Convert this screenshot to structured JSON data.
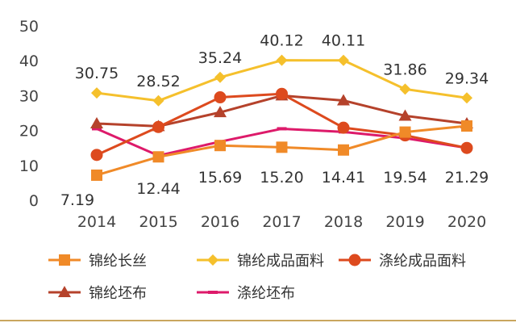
{
  "chart_data": {
    "type": "line",
    "title": "",
    "xlabel": "",
    "ylabel": "",
    "categories": [
      "2014",
      "2015",
      "2016",
      "2017",
      "2018",
      "2019",
      "2020"
    ],
    "ylim": [
      0,
      50
    ],
    "yticks": [
      "0",
      "10",
      "20",
      "30",
      "40",
      "50"
    ],
    "grid": false,
    "legend_position": "bottom",
    "series": [
      {
        "name": "锦纶长丝",
        "color": "#f08a28",
        "marker": "square",
        "values": [
          7.19,
          12.44,
          15.69,
          15.2,
          14.41,
          19.54,
          21.29
        ],
        "labels": [
          "7.19",
          "12.44",
          "15.69",
          "15.20",
          "14.41",
          "19.54",
          "21.29"
        ]
      },
      {
        "name": "锦纶成品面料",
        "color": "#f5c02c",
        "marker": "diamond",
        "values": [
          30.75,
          28.52,
          35.24,
          40.12,
          40.11,
          31.86,
          29.34
        ],
        "labels": [
          "30.75",
          "28.52",
          "35.24",
          "40.12",
          "40.11",
          "31.86",
          "29.34"
        ]
      },
      {
        "name": "涤纶成品面料",
        "color": "#dd4a1e",
        "marker": "circle",
        "values": [
          13.0,
          21.0,
          29.5,
          30.5,
          20.8,
          18.6,
          15.0
        ]
      },
      {
        "name": "锦纶坯布",
        "color": "#b5422b",
        "marker": "triangle",
        "values": [
          22.0,
          21.2,
          25.2,
          30.0,
          28.6,
          24.2,
          22.0
        ]
      },
      {
        "name": "涤纶坯布",
        "color": "#dd1a6a",
        "marker": "dash",
        "values": [
          20.5,
          12.8,
          16.8,
          20.5,
          19.6,
          17.8,
          15.0
        ]
      }
    ]
  }
}
